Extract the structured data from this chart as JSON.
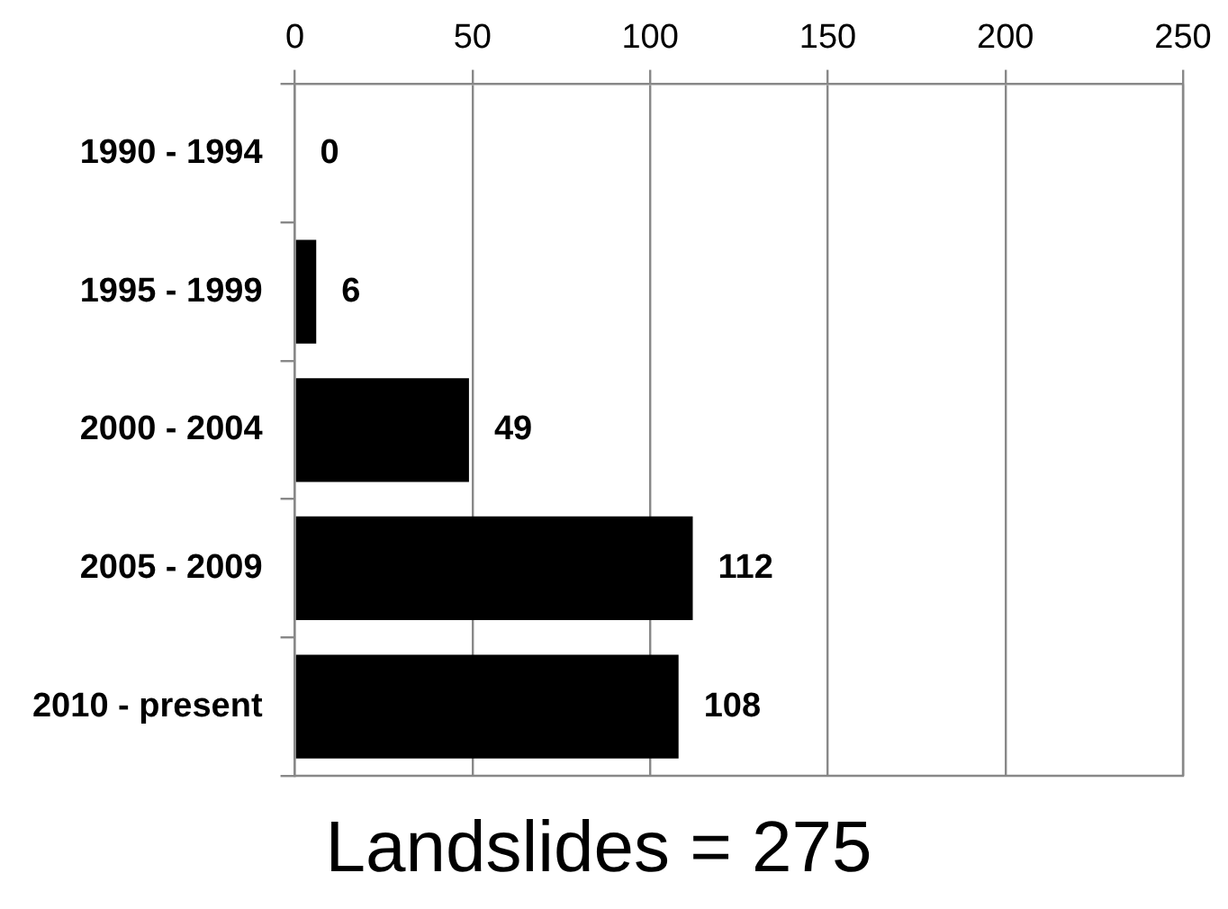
{
  "chart_data": {
    "type": "bar",
    "orientation": "horizontal",
    "title": "Landslides = 275",
    "categories": [
      "1990 - 1994",
      "1995 - 1999",
      "2000 - 2004",
      "2005 - 2009",
      "2010 - present"
    ],
    "values": [
      0,
      6,
      49,
      112,
      108
    ],
    "color": "#000000",
    "xlim": [
      0,
      250
    ],
    "xticks": [
      0,
      50,
      100,
      150,
      200,
      250
    ],
    "grid": "x",
    "data_labels": true,
    "legend": false
  }
}
